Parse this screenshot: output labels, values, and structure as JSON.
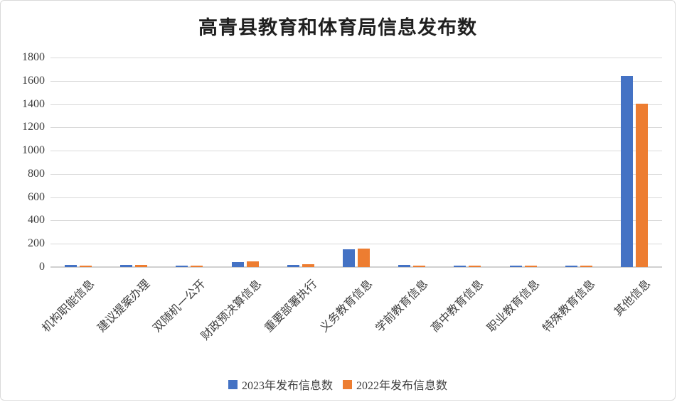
{
  "chart_data": {
    "type": "bar",
    "title": "高青县教育和体育局信息发布数",
    "categories": [
      "机构职能信息",
      "建议提案办理",
      "双随机一公开",
      "财政预决算信息",
      "重要部署执行",
      "义务教育信息",
      "学前教育信息",
      "高中教育信息",
      "职业教育信息",
      "特殊教育信息",
      "其他信息"
    ],
    "series": [
      {
        "name": "2023年发布信息数",
        "color": "#4472C4",
        "values": [
          20,
          20,
          12,
          45,
          20,
          155,
          18,
          13,
          14,
          13,
          1640
        ]
      },
      {
        "name": "2022年发布信息数",
        "color": "#ED7D31",
        "values": [
          10,
          17,
          10,
          50,
          22,
          160,
          10,
          13,
          14,
          12,
          1405
        ]
      }
    ],
    "ylim": [
      0,
      1800
    ],
    "yticks": [
      0,
      200,
      400,
      600,
      800,
      1000,
      1200,
      1400,
      1600,
      1800
    ],
    "grid": "horizontal",
    "legend_position": "bottom",
    "background": "#ffffff",
    "gridline_color": "#d9d9d9",
    "text_color": "#3f3f3f"
  }
}
